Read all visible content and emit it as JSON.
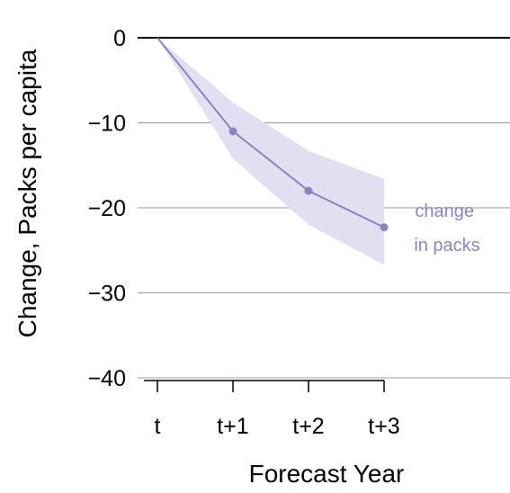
{
  "chart_data": {
    "type": "line",
    "title": "",
    "xlabel": "Forecast Year",
    "ylabel": "Change, Packs per capita",
    "categories": [
      "t",
      "t+1",
      "t+2",
      "t+3"
    ],
    "ylim": [
      -40,
      0
    ],
    "yticks": [
      0,
      -10,
      -20,
      -30,
      -40
    ],
    "ytick_labels": [
      "0",
      "−10",
      "−20",
      "−30",
      "−40"
    ],
    "grid": "horizontal",
    "series": [
      {
        "label_lines": [
          "change",
          "in packs"
        ],
        "values": [
          0,
          -11,
          -18,
          -22.3
        ],
        "lower": [
          0,
          -14.2,
          -22.0,
          -26.7
        ],
        "upper": [
          0,
          -7.6,
          -13.3,
          -16.6
        ],
        "color": "#8b84c4",
        "band_color": "#e1e0f0"
      }
    ]
  }
}
